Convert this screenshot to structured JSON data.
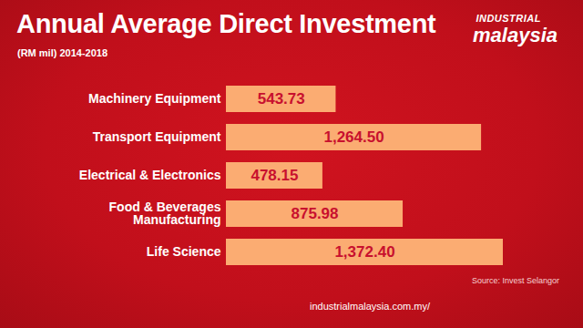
{
  "chart_data": {
    "type": "bar",
    "title": "Annual Average Direct Investment",
    "subtitle": "(RM mil) 2014-2018",
    "logo": [
      "INDUSTRIAL",
      "malaysia"
    ],
    "source": "Source: Invest Selangor",
    "footer": "industrialmalaysia.com.my/",
    "orientation": "horizontal",
    "categories": [
      "Machinery Equipment",
      "Transport Equipment",
      "Electrical & Electronics",
      "Food & Beverages\nManufacturing",
      "Life Science"
    ],
    "values": [
      543.73,
      1264.5,
      478.15,
      875.98,
      1372.4
    ],
    "value_labels": [
      "543.73",
      "1,264.50",
      "478.15",
      "875.98",
      "1,372.40"
    ],
    "color": "#fbac72",
    "data_labels": true,
    "tick_labels": "y",
    "grid": false
  }
}
